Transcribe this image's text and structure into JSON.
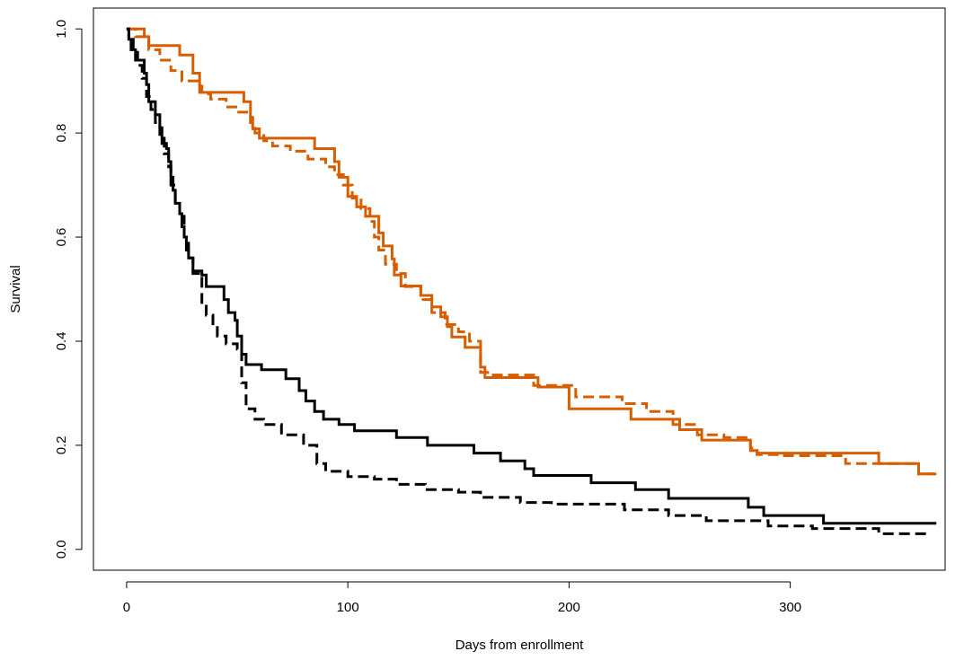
{
  "chart_data": {
    "type": "line",
    "title": "",
    "xlabel": "Days from enrollment",
    "ylabel": "Survival",
    "xlim": [
      -15,
      370
    ],
    "ylim": [
      -0.04,
      1.04
    ],
    "x_ticks": [
      0,
      100,
      200,
      300
    ],
    "y_ticks": [
      0.0,
      0.2,
      0.4,
      0.6,
      0.8,
      1.0
    ],
    "x_tick_labels": [
      "0",
      "100",
      "200",
      "300"
    ],
    "y_tick_labels": [
      "0.0",
      "0.2",
      "0.4",
      "0.6",
      "0.8",
      "1.0"
    ],
    "grid": false,
    "legend": null,
    "series": [
      {
        "color": "#D55E00",
        "style": "solid",
        "step": true,
        "points": [
          [
            0,
            1.0
          ],
          [
            8,
            0.985
          ],
          [
            10,
            0.968
          ],
          [
            24,
            0.95
          ],
          [
            30,
            0.915
          ],
          [
            33,
            0.878
          ],
          [
            42,
            0.878
          ],
          [
            53,
            0.86
          ],
          [
            56,
            0.83
          ],
          [
            57,
            0.808
          ],
          [
            60,
            0.79
          ],
          [
            64,
            0.79
          ],
          [
            85,
            0.77
          ],
          [
            94,
            0.745
          ],
          [
            96,
            0.715
          ],
          [
            100,
            0.678
          ],
          [
            104,
            0.658
          ],
          [
            108,
            0.64
          ],
          [
            114,
            0.608
          ],
          [
            116,
            0.583
          ],
          [
            120,
            0.558
          ],
          [
            121,
            0.527
          ],
          [
            124,
            0.506
          ],
          [
            133,
            0.488
          ],
          [
            138,
            0.466
          ],
          [
            142,
            0.447
          ],
          [
            145,
            0.428
          ],
          [
            147,
            0.408
          ],
          [
            153,
            0.388
          ],
          [
            160,
            0.35
          ],
          [
            162,
            0.33
          ],
          [
            172,
            0.33
          ],
          [
            186,
            0.312
          ],
          [
            200,
            0.27
          ],
          [
            228,
            0.25
          ],
          [
            247,
            0.25
          ],
          [
            250,
            0.23
          ],
          [
            260,
            0.21
          ],
          [
            282,
            0.19
          ],
          [
            285,
            0.185
          ],
          [
            340,
            0.165
          ],
          [
            358,
            0.145
          ],
          [
            366,
            0.145
          ]
        ]
      },
      {
        "color": "#D55E00",
        "style": "dashed",
        "step": true,
        "points": [
          [
            0,
            1.0
          ],
          [
            4,
            0.985
          ],
          [
            10,
            0.96
          ],
          [
            15,
            0.94
          ],
          [
            20,
            0.92
          ],
          [
            25,
            0.9
          ],
          [
            33,
            0.89
          ],
          [
            34,
            0.875
          ],
          [
            38,
            0.865
          ],
          [
            45,
            0.85
          ],
          [
            50,
            0.84
          ],
          [
            56,
            0.82
          ],
          [
            58,
            0.8
          ],
          [
            62,
            0.785
          ],
          [
            66,
            0.775
          ],
          [
            74,
            0.765
          ],
          [
            82,
            0.75
          ],
          [
            90,
            0.735
          ],
          [
            94,
            0.72
          ],
          [
            98,
            0.7
          ],
          [
            102,
            0.675
          ],
          [
            106,
            0.655
          ],
          [
            110,
            0.63
          ],
          [
            112,
            0.6
          ],
          [
            114,
            0.575
          ],
          [
            117,
            0.548
          ],
          [
            122,
            0.53
          ],
          [
            126,
            0.505
          ],
          [
            133,
            0.48
          ],
          [
            138,
            0.455
          ],
          [
            144,
            0.432
          ],
          [
            150,
            0.418
          ],
          [
            155,
            0.4
          ],
          [
            160,
            0.34
          ],
          [
            165,
            0.335
          ],
          [
            184,
            0.315
          ],
          [
            203,
            0.293
          ],
          [
            224,
            0.28
          ],
          [
            235,
            0.265
          ],
          [
            247,
            0.24
          ],
          [
            258,
            0.22
          ],
          [
            270,
            0.215
          ],
          [
            282,
            0.195
          ],
          [
            285,
            0.182
          ],
          [
            295,
            0.18
          ],
          [
            325,
            0.165
          ],
          [
            358,
            0.145
          ],
          [
            365,
            0.145
          ]
        ]
      },
      {
        "color": "#000000",
        "style": "solid",
        "step": true,
        "points": [
          [
            0,
            1.0
          ],
          [
            1,
            0.98
          ],
          [
            2,
            0.96
          ],
          [
            4,
            0.94
          ],
          [
            7,
            0.94
          ],
          [
            8,
            0.915
          ],
          [
            9,
            0.893
          ],
          [
            10,
            0.86
          ],
          [
            13,
            0.835
          ],
          [
            15,
            0.81
          ],
          [
            16,
            0.78
          ],
          [
            18,
            0.77
          ],
          [
            19,
            0.745
          ],
          [
            20,
            0.715
          ],
          [
            21,
            0.69
          ],
          [
            22,
            0.665
          ],
          [
            24,
            0.645
          ],
          [
            25,
            0.62
          ],
          [
            26,
            0.6
          ],
          [
            27,
            0.575
          ],
          [
            28,
            0.56
          ],
          [
            30,
            0.535
          ],
          [
            34,
            0.527
          ],
          [
            36,
            0.505
          ],
          [
            42,
            0.505
          ],
          [
            44,
            0.48
          ],
          [
            46,
            0.455
          ],
          [
            49,
            0.44
          ],
          [
            50,
            0.41
          ],
          [
            52,
            0.375
          ],
          [
            54,
            0.355
          ],
          [
            61,
            0.345
          ],
          [
            72,
            0.328
          ],
          [
            78,
            0.305
          ],
          [
            81,
            0.285
          ],
          [
            85,
            0.265
          ],
          [
            89,
            0.25
          ],
          [
            96,
            0.24
          ],
          [
            103,
            0.228
          ],
          [
            112,
            0.228
          ],
          [
            122,
            0.215
          ],
          [
            133,
            0.215
          ],
          [
            136,
            0.2
          ],
          [
            155,
            0.2
          ],
          [
            157,
            0.185
          ],
          [
            169,
            0.17
          ],
          [
            180,
            0.155
          ],
          [
            184,
            0.142
          ],
          [
            200,
            0.142
          ],
          [
            210,
            0.128
          ],
          [
            230,
            0.115
          ],
          [
            245,
            0.098
          ],
          [
            260,
            0.098
          ],
          [
            281,
            0.081
          ],
          [
            288,
            0.065
          ],
          [
            315,
            0.05
          ],
          [
            366,
            0.05
          ]
        ]
      },
      {
        "color": "#000000",
        "style": "dashed",
        "step": true,
        "points": [
          [
            0,
            1.0
          ],
          [
            1,
            0.98
          ],
          [
            3,
            0.955
          ],
          [
            5,
            0.93
          ],
          [
            7,
            0.905
          ],
          [
            9,
            0.87
          ],
          [
            11,
            0.845
          ],
          [
            13,
            0.82
          ],
          [
            15,
            0.79
          ],
          [
            17,
            0.76
          ],
          [
            19,
            0.735
          ],
          [
            20,
            0.7
          ],
          [
            22,
            0.67
          ],
          [
            24,
            0.64
          ],
          [
            26,
            0.6
          ],
          [
            28,
            0.56
          ],
          [
            30,
            0.53
          ],
          [
            34,
            0.47
          ],
          [
            36,
            0.45
          ],
          [
            39,
            0.43
          ],
          [
            41,
            0.41
          ],
          [
            45,
            0.395
          ],
          [
            50,
            0.385
          ],
          [
            52,
            0.32
          ],
          [
            54,
            0.27
          ],
          [
            58,
            0.25
          ],
          [
            62,
            0.24
          ],
          [
            70,
            0.22
          ],
          [
            80,
            0.2
          ],
          [
            86,
            0.165
          ],
          [
            90,
            0.15
          ],
          [
            100,
            0.14
          ],
          [
            112,
            0.135
          ],
          [
            122,
            0.125
          ],
          [
            135,
            0.115
          ],
          [
            150,
            0.11
          ],
          [
            160,
            0.1
          ],
          [
            178,
            0.09
          ],
          [
            192,
            0.087
          ],
          [
            225,
            0.076
          ],
          [
            245,
            0.065
          ],
          [
            262,
            0.055
          ],
          [
            290,
            0.045
          ],
          [
            310,
            0.04
          ],
          [
            340,
            0.03
          ],
          [
            362,
            0.025
          ]
        ]
      }
    ]
  }
}
